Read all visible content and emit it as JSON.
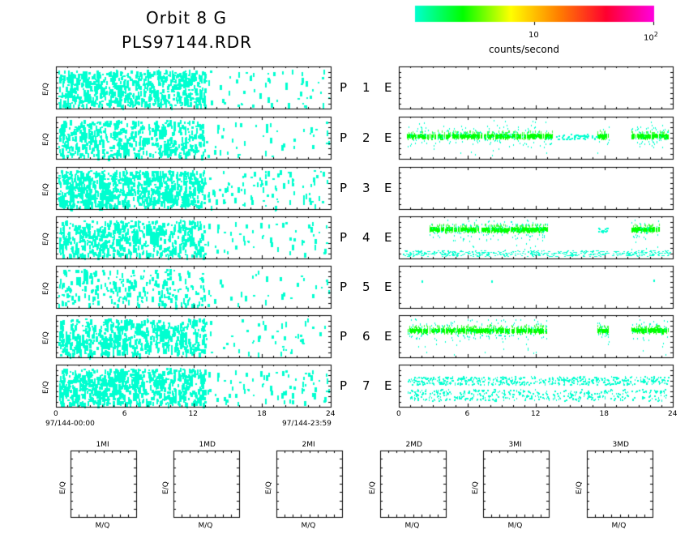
{
  "header": {
    "title_line1": "Orbit 8 G",
    "title_line2": "PLS97144.RDR"
  },
  "colorbar": {
    "colors": [
      "#00ffd0",
      "#00ff00",
      "#ffff00",
      "#ff8000",
      "#ff0030",
      "#ff00e0"
    ],
    "tick_10": "10",
    "tick_100_base": "10",
    "tick_100_exp": "2",
    "label": "counts/second"
  },
  "panel_labels": [
    {
      "p": "P",
      "n": "1",
      "e": "E"
    },
    {
      "p": "P",
      "n": "2",
      "e": "E"
    },
    {
      "p": "P",
      "n": "3",
      "e": "E"
    },
    {
      "p": "P",
      "n": "4",
      "e": "E"
    },
    {
      "p": "P",
      "n": "5",
      "e": "E"
    },
    {
      "p": "P",
      "n": "6",
      "e": "E"
    },
    {
      "p": "P",
      "n": "7",
      "e": "E"
    }
  ],
  "axes": {
    "ylabel": "E/Q",
    "x_ticks": [
      "0",
      "6",
      "12",
      "18",
      "24"
    ],
    "start_stamp": "97/144-00:00",
    "end_stamp": "97/144-23:59"
  },
  "squares": {
    "titles": [
      "1MI",
      "1MD",
      "2MI",
      "2MD",
      "3MI",
      "3MD"
    ],
    "xlabel": "M/Q",
    "ylabel": "E/Q"
  },
  "chart_data": {
    "type": "heatmap",
    "x_range_hours": [
      0,
      24
    ],
    "colorscale": "log counts/second, 1 to 100",
    "left_column": "7 sparse cyan spectrograms, activity concentrated 0-13 h",
    "right_column": [
      {
        "panel": 1,
        "activity": "none"
      },
      {
        "panel": 2,
        "bands": [
          [
            0.5,
            13.5,
            "dense"
          ],
          [
            17.5,
            18.5,
            "dense"
          ],
          [
            20.5,
            23.8,
            "dense"
          ],
          [
            13.5,
            17.5,
            "sparse"
          ]
        ],
        "level": 0.45
      },
      {
        "panel": 3,
        "activity": "none"
      },
      {
        "panel": 4,
        "bands": [
          [
            2.5,
            13,
            "dense"
          ],
          [
            17.5,
            18.5,
            "sparse"
          ],
          [
            20.5,
            23,
            "dense"
          ]
        ],
        "level": 0.3
      },
      {
        "panel": 5,
        "activity": "few points"
      },
      {
        "panel": 6,
        "bands": [
          [
            0.5,
            13,
            "dense"
          ],
          [
            17.5,
            18.5,
            "dense"
          ],
          [
            20.5,
            23.8,
            "dense"
          ]
        ],
        "level": 0.35
      },
      {
        "panel": 7,
        "bands": [
          [
            0.5,
            23.8,
            "sparse cyan"
          ]
        ],
        "level": 0.3
      }
    ]
  }
}
